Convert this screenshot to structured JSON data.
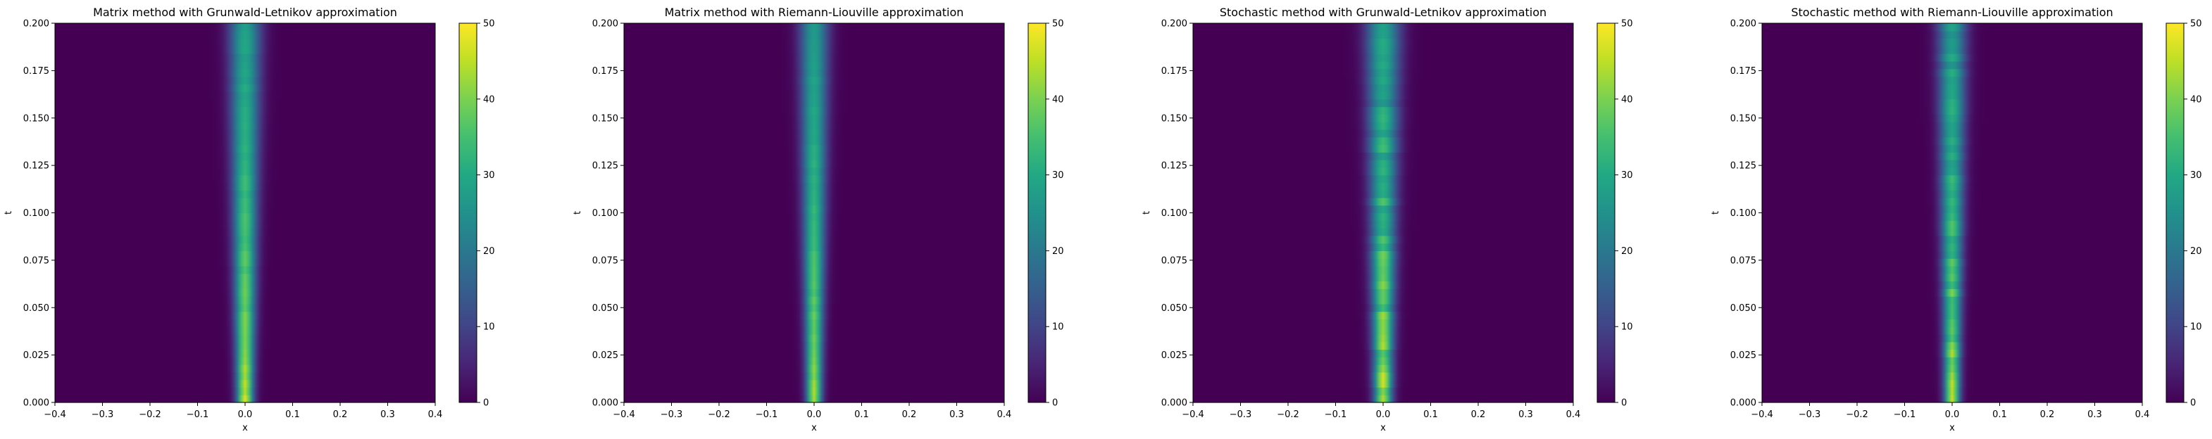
{
  "chart_data": [
    {
      "type": "heatmap",
      "title": "Matrix method with Grunwald-Letnikov approximation",
      "xlabel": "x",
      "ylabel": "t",
      "xlim": [
        -0.4,
        0.4
      ],
      "ylim": [
        0.0,
        0.2
      ],
      "x_ticks": [
        "−0.4",
        "−0.3",
        "−0.2",
        "−0.1",
        "0.0",
        "0.1",
        "0.2",
        "0.3",
        "0.4"
      ],
      "y_ticks": [
        "0.000",
        "0.025",
        "0.050",
        "0.075",
        "0.100",
        "0.125",
        "0.150",
        "0.175",
        "0.200"
      ],
      "colorbar_ticks": [
        "0",
        "10",
        "20",
        "30",
        "40",
        "50"
      ],
      "colormap": "viridis",
      "clim": [
        0,
        50
      ],
      "peak_x": 0.0,
      "peak_width_x": 0.012,
      "peak_at_t_min": 48,
      "peak_at_t_max": 28,
      "noise": 0.04
    },
    {
      "type": "heatmap",
      "title": "Matrix method with Riemann-Liouville approximation",
      "xlabel": "x",
      "ylabel": "t",
      "xlim": [
        -0.4,
        0.4
      ],
      "ylim": [
        0.0,
        0.2
      ],
      "x_ticks": [
        "−0.4",
        "−0.3",
        "−0.2",
        "−0.1",
        "0.0",
        "0.1",
        "0.2",
        "0.3",
        "0.4"
      ],
      "y_ticks": [
        "0.000",
        "0.025",
        "0.050",
        "0.075",
        "0.100",
        "0.125",
        "0.150",
        "0.175",
        "0.200"
      ],
      "colorbar_ticks": [
        "0",
        "10",
        "20",
        "30",
        "40",
        "50"
      ],
      "colormap": "viridis",
      "clim": [
        0,
        50
      ],
      "peak_x": 0.0,
      "peak_width_x": 0.011,
      "peak_at_t_min": 46,
      "peak_at_t_max": 27,
      "noise": 0.03
    },
    {
      "type": "heatmap",
      "title": "Stochastic method with Grunwald-Letnikov approximation",
      "xlabel": "x",
      "ylabel": "t",
      "xlim": [
        -0.4,
        0.4
      ],
      "ylim": [
        0.0,
        0.2
      ],
      "x_ticks": [
        "−0.4",
        "−0.3",
        "−0.2",
        "−0.1",
        "0.0",
        "0.1",
        "0.2",
        "0.3",
        "0.4"
      ],
      "y_ticks": [
        "0.000",
        "0.025",
        "0.050",
        "0.075",
        "0.100",
        "0.125",
        "0.150",
        "0.175",
        "0.200"
      ],
      "colorbar_ticks": [
        "0",
        "10",
        "20",
        "30",
        "40",
        "50"
      ],
      "colormap": "viridis",
      "clim": [
        0,
        50
      ],
      "peak_x": 0.0,
      "peak_width_x": 0.013,
      "peak_at_t_min": 47,
      "peak_at_t_max": 27,
      "noise": 0.12
    },
    {
      "type": "heatmap",
      "title": "Stochastic method with Riemann-Liouville approximation",
      "xlabel": "x",
      "ylabel": "t",
      "xlim": [
        -0.4,
        0.4
      ],
      "ylim": [
        0.0,
        0.2
      ],
      "x_ticks": [
        "−0.4",
        "−0.3",
        "−0.2",
        "−0.1",
        "0.0",
        "0.1",
        "0.2",
        "0.3",
        "0.4"
      ],
      "y_ticks": [
        "0.000",
        "0.025",
        "0.050",
        "0.075",
        "0.100",
        "0.125",
        "0.150",
        "0.175",
        "0.200"
      ],
      "colorbar_ticks": [
        "0",
        "10",
        "20",
        "30",
        "40",
        "50"
      ],
      "colormap": "viridis",
      "clim": [
        0,
        50
      ],
      "peak_x": 0.0,
      "peak_width_x": 0.011,
      "peak_at_t_min": 46,
      "peak_at_t_max": 27,
      "noise": 0.1
    }
  ]
}
